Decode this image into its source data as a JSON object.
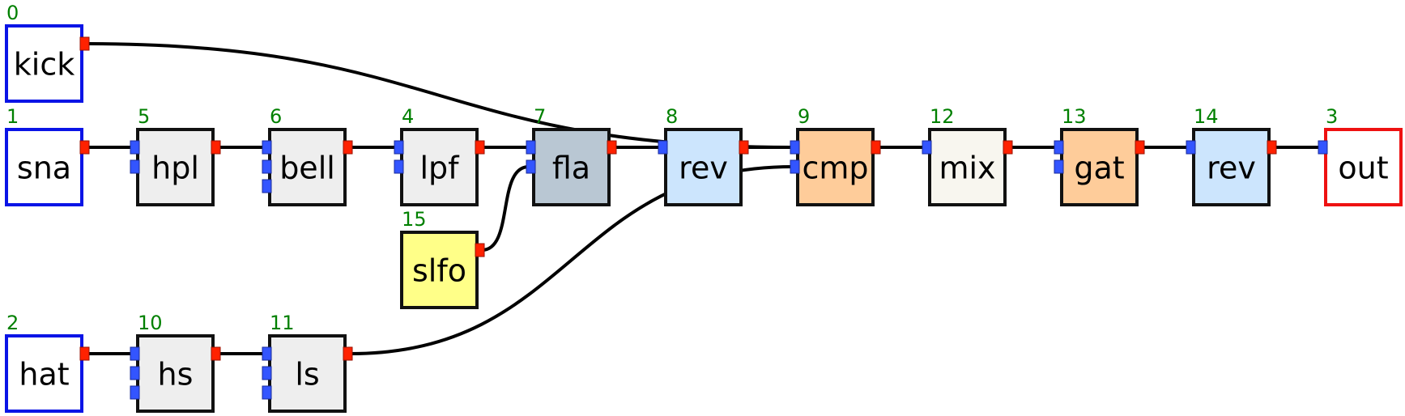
{
  "colors": {
    "wire": "#000000",
    "input_port": "#3355ff",
    "output_port": "#ff2200",
    "id_text": "#008000",
    "source_border": "#0a14e6",
    "sink_border": "#ee1111",
    "node_border": "#111111"
  },
  "nodes": [
    {
      "id": "0",
      "label": "kick",
      "kind": "source",
      "fill": "#ffffff",
      "inputs": 0,
      "outputs": 1
    },
    {
      "id": "1",
      "label": "sna",
      "kind": "source",
      "fill": "#ffffff",
      "inputs": 0,
      "outputs": 1
    },
    {
      "id": "2",
      "label": "hat",
      "kind": "source",
      "fill": "#ffffff",
      "inputs": 0,
      "outputs": 1
    },
    {
      "id": "5",
      "label": "hpl",
      "kind": "proc",
      "fill": "#eeeeee",
      "inputs": 2,
      "outputs": 1
    },
    {
      "id": "6",
      "label": "bell",
      "kind": "proc",
      "fill": "#eeeeee",
      "inputs": 3,
      "outputs": 1
    },
    {
      "id": "4",
      "label": "lpf",
      "kind": "proc",
      "fill": "#eeeeee",
      "inputs": 2,
      "outputs": 1
    },
    {
      "id": "7",
      "label": "fla",
      "kind": "proc",
      "fill": "#b9c7d3",
      "inputs": 2,
      "outputs": 1
    },
    {
      "id": "15",
      "label": "slfo",
      "kind": "proc",
      "fill": "#ffff88",
      "inputs": 0,
      "outputs": 1
    },
    {
      "id": "8",
      "label": "rev",
      "kind": "proc",
      "fill": "#cce5fd",
      "inputs": 1,
      "outputs": 1
    },
    {
      "id": "9",
      "label": "cmp",
      "kind": "proc",
      "fill": "#fecc9a",
      "inputs": 2,
      "outputs": 1
    },
    {
      "id": "12",
      "label": "mix",
      "kind": "proc",
      "fill": "#f8f6ef",
      "inputs": 1,
      "outputs": 1
    },
    {
      "id": "13",
      "label": "gat",
      "kind": "proc",
      "fill": "#fecc9a",
      "inputs": 2,
      "outputs": 1
    },
    {
      "id": "14",
      "label": "rev",
      "kind": "proc",
      "fill": "#cce5fd",
      "inputs": 1,
      "outputs": 1
    },
    {
      "id": "3",
      "label": "out",
      "kind": "sink",
      "fill": "#ffffff",
      "inputs": 1,
      "outputs": 0
    },
    {
      "id": "10",
      "label": "hs",
      "kind": "proc",
      "fill": "#eeeeee",
      "inputs": 3,
      "outputs": 1
    },
    {
      "id": "11",
      "label": "ls",
      "kind": "proc",
      "fill": "#eeeeee",
      "inputs": 3,
      "outputs": 1
    }
  ],
  "edges": [
    {
      "from": "0",
      "to": "9",
      "port": 0
    },
    {
      "from": "1",
      "to": "5",
      "port": 0
    },
    {
      "from": "5",
      "to": "6",
      "port": 0
    },
    {
      "from": "6",
      "to": "4",
      "port": 0
    },
    {
      "from": "4",
      "to": "7",
      "port": 0
    },
    {
      "from": "15",
      "to": "7",
      "port": 1
    },
    {
      "from": "7",
      "to": "8",
      "port": 0
    },
    {
      "from": "8",
      "to": "9",
      "port": 0
    },
    {
      "from": "11",
      "to": "9",
      "port": 1
    },
    {
      "from": "9",
      "to": "12",
      "port": 0
    },
    {
      "from": "12",
      "to": "13",
      "port": 0
    },
    {
      "from": "13",
      "to": "14",
      "port": 0
    },
    {
      "from": "14",
      "to": "3",
      "port": 0
    },
    {
      "from": "2",
      "to": "10",
      "port": 0
    },
    {
      "from": "10",
      "to": "11",
      "port": 0
    }
  ]
}
